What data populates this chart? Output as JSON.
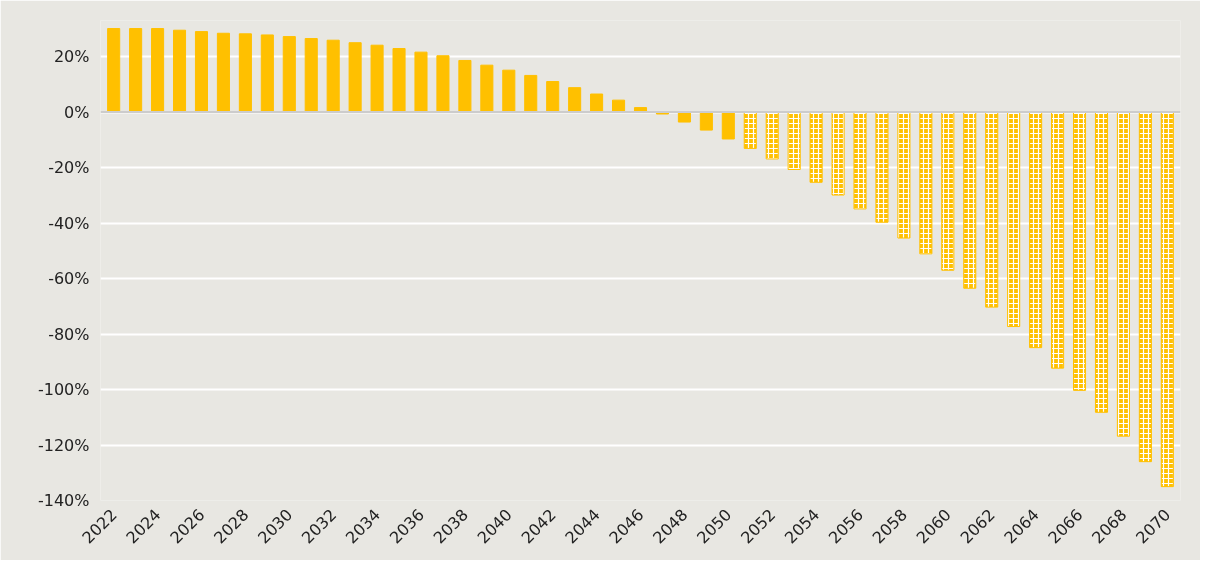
{
  "chart_data": {
    "type": "bar",
    "categories": [
      "2022",
      null,
      "2024",
      null,
      "2026",
      null,
      "2028",
      null,
      "2030",
      null,
      "2032",
      null,
      "2034",
      null,
      "2036",
      null,
      "2038",
      null,
      "2040",
      null,
      "2042",
      null,
      "2044",
      null,
      "2046",
      null,
      "2048",
      null,
      "2050",
      null,
      "2052",
      null,
      "2054",
      null,
      "2056",
      null,
      "2058",
      null,
      "2060",
      null,
      "2062",
      null,
      "2064",
      null,
      "2066",
      null,
      "2068",
      null,
      "2070"
    ],
    "series": [
      {
        "color": "#ffc000",
        "values": [
          30.1,
          30.1,
          30.1,
          29.5,
          29.0,
          28.4,
          28.2,
          27.8,
          27.2,
          26.5,
          25.9,
          25.0,
          24.1,
          22.9,
          21.6,
          20.3,
          18.6,
          16.9,
          15.1,
          13.2,
          11.0,
          8.8,
          6.5,
          4.3,
          1.6,
          -0.7,
          -3.6,
          -6.5,
          -9.7,
          null,
          null,
          null,
          null,
          null,
          null,
          null,
          null,
          null,
          null,
          null,
          null,
          null,
          null,
          null,
          null,
          null,
          null,
          null,
          null
        ]
      },
      {
        "color": "#ffc000",
        "values": [
          null,
          null,
          null,
          null,
          null,
          null,
          null,
          null,
          null,
          null,
          null,
          null,
          null,
          null,
          null,
          null,
          null,
          null,
          null,
          null,
          null,
          null,
          null,
          null,
          null,
          null,
          null,
          null,
          null,
          -13.1,
          -16.9,
          -20.7,
          -25.3,
          -29.9,
          -34.9,
          -39.7,
          -45.4,
          -51.1,
          -57.0,
          -63.5,
          -70.3,
          -77.3,
          -84.9,
          -92.3,
          -100.3,
          -108.2,
          -116.8,
          -126.0,
          -135.0
        ]
      }
    ],
    "ylim": [
      -140,
      33
    ],
    "yticks": [
      {
        "value": 20,
        "label": "20%"
      },
      {
        "value": 0,
        "label": "0%"
      },
      {
        "value": -20,
        "label": "-20%"
      },
      {
        "value": -40,
        "label": "-40%"
      },
      {
        "value": -60,
        "label": "-60%"
      },
      {
        "value": -80,
        "label": "-80%"
      },
      {
        "value": -100,
        "label": "-100%"
      },
      {
        "value": -120,
        "label": "-120%"
      },
      {
        "value": -140,
        "label": "-140%"
      }
    ],
    "grid": "y"
  }
}
